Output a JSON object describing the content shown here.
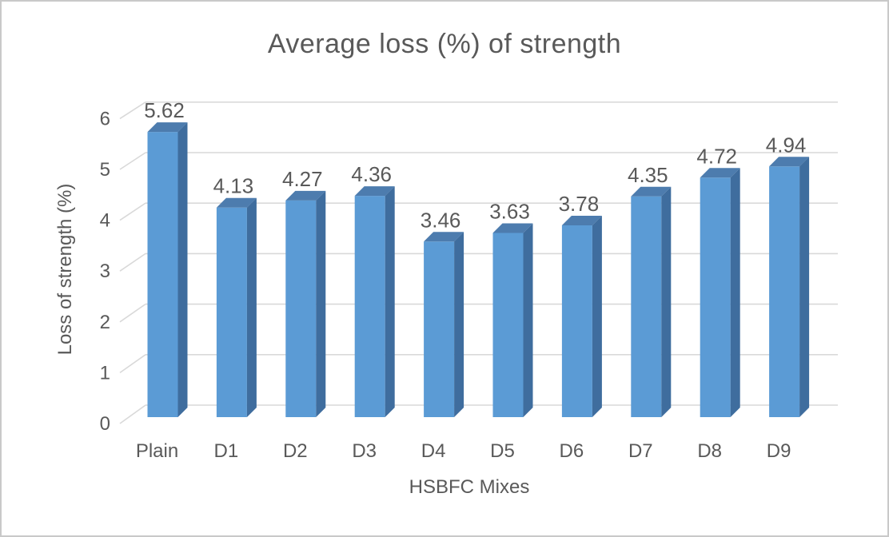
{
  "chart_data": {
    "type": "bar",
    "style": "3d-column",
    "title": "Average loss (%) of strength",
    "xlabel": "HSBFC Mixes",
    "ylabel": "Loss of strength (%)",
    "categories": [
      "Plain",
      "D1",
      "D2",
      "D3",
      "D4",
      "D5",
      "D6",
      "D7",
      "D8",
      "D9"
    ],
    "values": [
      5.62,
      4.13,
      4.27,
      4.36,
      3.46,
      3.63,
      3.78,
      4.35,
      4.72,
      4.94
    ],
    "data_labels": [
      "5.62",
      "4.13",
      "4.27",
      "4.36",
      "3.46",
      "3.63",
      "3.78",
      "4.35",
      "4.72",
      "4.94"
    ],
    "yticks": [
      0,
      1,
      2,
      3,
      4,
      5,
      6
    ],
    "ylim": [
      0,
      6
    ],
    "grid": true,
    "legend": false,
    "colors": {
      "bar_front": "#5b9bd5",
      "bar_side": "#3f6d9e",
      "bar_top": "#4d7cae",
      "gridline": "#d9d9d9",
      "text": "#595959",
      "frame_border": "#c9c9c9",
      "background": "#ffffff"
    }
  }
}
